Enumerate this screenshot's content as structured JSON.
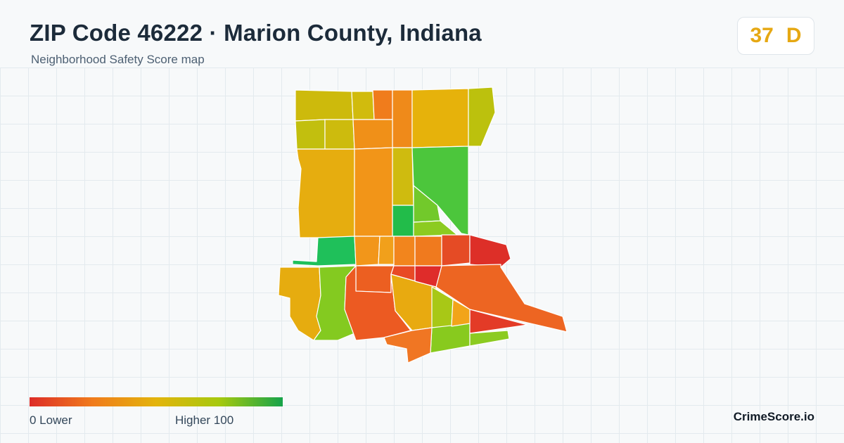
{
  "header": {
    "title": "ZIP Code 46222 · Marion County, Indiana",
    "subtitle": "Neighborhood Safety Score map"
  },
  "score": {
    "value": "37",
    "grade": "D",
    "color": "#e6a813"
  },
  "legend": {
    "min_label": "0  Lower",
    "max_label": "Higher  100",
    "colors": [
      "#dd2c27",
      "#f07c1c",
      "#e3b40c",
      "#a6c90e",
      "#16a34a"
    ]
  },
  "brand": "CrimeScore.io",
  "map": {
    "regions": [
      {
        "id": "r1",
        "score": 48,
        "color": "#cdba0c"
      },
      {
        "id": "r2",
        "score": 50,
        "color": "#d1bb0d"
      },
      {
        "id": "r3",
        "score": 22,
        "color": "#f07c1c"
      },
      {
        "id": "r4",
        "score": 28,
        "color": "#ef8a1a"
      },
      {
        "id": "r5",
        "score": 42,
        "color": "#e6b20b"
      },
      {
        "id": "r6",
        "score": 58,
        "color": "#bcc10d"
      },
      {
        "id": "r7",
        "score": 55,
        "color": "#c2bf0e"
      },
      {
        "id": "r8",
        "score": 50,
        "color": "#cdbb0d"
      },
      {
        "id": "r9",
        "score": 42,
        "color": "#e6ad0f"
      },
      {
        "id": "r10",
        "score": 30,
        "color": "#f09018"
      },
      {
        "id": "r11",
        "score": 50,
        "color": "#cfbb0f"
      },
      {
        "id": "r12",
        "score": 75,
        "color": "#4cc63c"
      },
      {
        "id": "r13",
        "score": 70,
        "color": "#72c92b"
      },
      {
        "id": "r14",
        "score": 85,
        "color": "#22bc4a"
      },
      {
        "id": "r15",
        "score": 68,
        "color": "#8ccb21"
      },
      {
        "id": "r16",
        "score": 30,
        "color": "#f29518"
      },
      {
        "id": "r17",
        "score": 80,
        "color": "#1fc05a"
      },
      {
        "id": "r18",
        "score": 32,
        "color": "#f2961a"
      },
      {
        "id": "r19",
        "score": 35,
        "color": "#f1a01b"
      },
      {
        "id": "r20",
        "score": 25,
        "color": "#f2851d"
      },
      {
        "id": "r21",
        "score": 22,
        "color": "#f07a1e"
      },
      {
        "id": "r22",
        "score": 10,
        "color": "#e54b25"
      },
      {
        "id": "r23",
        "score": 5,
        "color": "#dd2f28"
      },
      {
        "id": "r24",
        "score": 15,
        "color": "#ec5f21"
      },
      {
        "id": "r25",
        "score": 42,
        "color": "#e6ac0f"
      },
      {
        "id": "r26",
        "score": 70,
        "color": "#84ca20"
      },
      {
        "id": "r27",
        "score": 14,
        "color": "#ec5a22"
      },
      {
        "id": "r28",
        "score": 40,
        "color": "#e8aa10"
      },
      {
        "id": "r29",
        "score": 62,
        "color": "#a8c816"
      },
      {
        "id": "r30",
        "score": 12,
        "color": "#e84a25"
      },
      {
        "id": "r31",
        "score": 70,
        "color": "#88ca1e"
      },
      {
        "id": "r32",
        "score": 20,
        "color": "#f07623"
      },
      {
        "id": "r33",
        "score": 14,
        "color": "#ed6522"
      },
      {
        "id": "r34",
        "score": 8,
        "color": "#e33b27"
      },
      {
        "id": "r35",
        "score": 5,
        "color": "#df2c2a"
      },
      {
        "id": "r36",
        "score": 35,
        "color": "#f2a419"
      },
      {
        "id": "r37",
        "score": 68,
        "color": "#8ccb21"
      }
    ]
  }
}
